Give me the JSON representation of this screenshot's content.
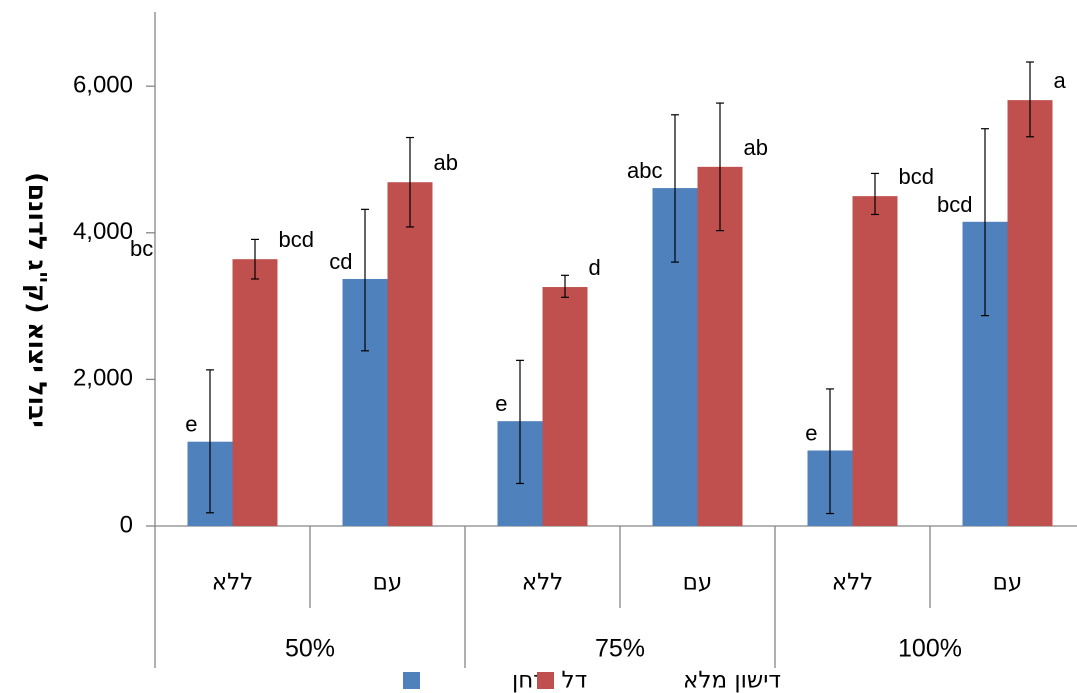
{
  "chart_data": {
    "type": "bar",
    "ylabel": "יבול יצוא (ק\"ג לדונם)",
    "xlabel": "",
    "ylim": [
      0,
      7000
    ],
    "yticks": [
      0,
      2000,
      4000,
      6000
    ],
    "ytick_labels": [
      "0",
      "2,000",
      "4,000",
      "6,000"
    ],
    "grid": false,
    "legend_position": "bottom",
    "categories": [
      "ללא",
      "עם",
      "ללא",
      "עם",
      "ללא",
      "עם"
    ],
    "groups": [
      {
        "label": "50%",
        "span": [
          0,
          1
        ]
      },
      {
        "label": "75%",
        "span": [
          2,
          3
        ]
      },
      {
        "label": "100%",
        "span": [
          4,
          5
        ]
      }
    ],
    "series": [
      {
        "name": "דל זרחן",
        "color": "#4f81bd",
        "values": [
          1150,
          3370,
          1430,
          4610,
          1030,
          4150
        ],
        "error_low": [
          180,
          2390,
          580,
          3600,
          170,
          2870
        ],
        "error_high": [
          2130,
          4320,
          2260,
          5610,
          1870,
          5420
        ],
        "labels": [
          "e",
          "cd",
          "e",
          "abc",
          "e",
          "bcd"
        ]
      },
      {
        "name": "דישון מלא",
        "color": "#c0504d",
        "values": [
          3640,
          4690,
          3260,
          4900,
          4500,
          5810
        ],
        "error_low": [
          3370,
          4080,
          3120,
          4030,
          4250,
          5310
        ],
        "error_high": [
          3910,
          5300,
          3420,
          5770,
          4810,
          6330
        ],
        "labels": [
          "bcd",
          "ab",
          "d",
          "ab",
          "bcd",
          "a"
        ]
      }
    ],
    "extra_label": "bc"
  }
}
